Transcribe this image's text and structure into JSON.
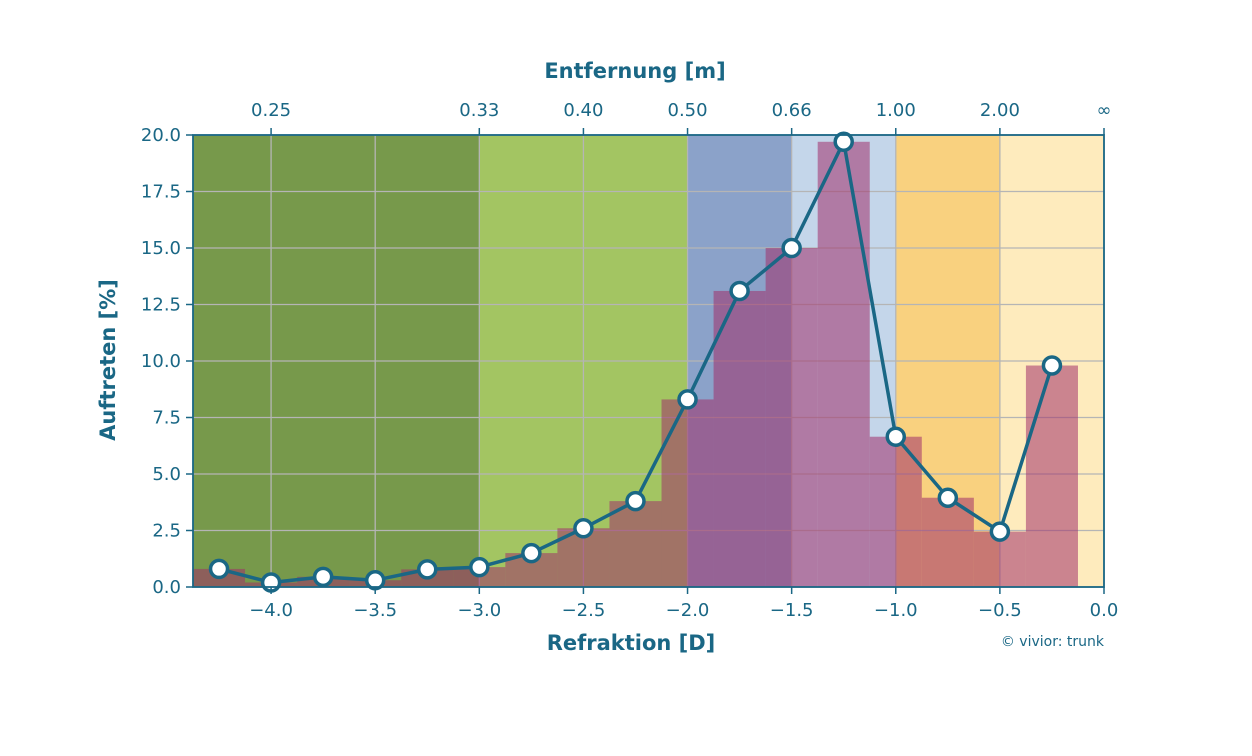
{
  "chart_data": {
    "type": "bar",
    "title": "",
    "xlabel": "Refraktion [D]",
    "ylabel": "Auftreten [%]",
    "top_axis_label": "Entfernung [m]",
    "credit": "© vivior: trunk",
    "xlim": [
      -4.375,
      0.0
    ],
    "ylim": [
      0,
      20
    ],
    "grid": true,
    "x_ticks": [
      {
        "value": -4.0,
        "label": "−4.0"
      },
      {
        "value": -3.5,
        "label": "−3.5"
      },
      {
        "value": -3.0,
        "label": "−3.0"
      },
      {
        "value": -2.5,
        "label": "−2.5"
      },
      {
        "value": -2.0,
        "label": "−2.0"
      },
      {
        "value": -1.5,
        "label": "−1.5"
      },
      {
        "value": -1.0,
        "label": "−1.0"
      },
      {
        "value": -0.5,
        "label": "−0.5"
      },
      {
        "value": 0.0,
        "label": "0.0"
      }
    ],
    "y_ticks": [
      {
        "value": 0,
        "label": "0.0"
      },
      {
        "value": 2.5,
        "label": "2.5"
      },
      {
        "value": 5,
        "label": "5.0"
      },
      {
        "value": 7.5,
        "label": "7.5"
      },
      {
        "value": 10,
        "label": "10.0"
      },
      {
        "value": 12.5,
        "label": "12.5"
      },
      {
        "value": 15,
        "label": "15.0"
      },
      {
        "value": 17.5,
        "label": "17.5"
      },
      {
        "value": 20,
        "label": "20.0"
      }
    ],
    "top_ticks": [
      {
        "value": -4.0,
        "label": "0.25"
      },
      {
        "value": -3.0,
        "label": "0.33"
      },
      {
        "value": -2.5,
        "label": "0.40"
      },
      {
        "value": -2.0,
        "label": "0.50"
      },
      {
        "value": -1.5,
        "label": "0.66"
      },
      {
        "value": -1.0,
        "label": "1.00"
      },
      {
        "value": -0.5,
        "label": "2.00"
      },
      {
        "value": 0.0,
        "label": "∞"
      }
    ],
    "zones": [
      {
        "x0": -4.375,
        "x1": -3.0,
        "color": "#77994b"
      },
      {
        "x0": -3.0,
        "x1": -2.0,
        "color": "#a3c562"
      },
      {
        "x0": -2.0,
        "x1": -1.5,
        "color": "#8ba2c9"
      },
      {
        "x0": -1.5,
        "x1": -1.0,
        "color": "#c4d6ea"
      },
      {
        "x0": -1.0,
        "x1": -0.5,
        "color": "#f9d17f"
      },
      {
        "x0": -0.5,
        "x1": 0.0,
        "color": "#feebbd"
      }
    ],
    "bin_width": 0.25,
    "x": [
      -4.25,
      -4.0,
      -3.75,
      -3.5,
      -3.25,
      -3.0,
      -2.75,
      -2.5,
      -2.25,
      -2.0,
      -1.75,
      -1.5,
      -1.25,
      -1.0,
      -0.75,
      -0.5,
      -0.25
    ],
    "series": [
      {
        "name": "Auftreten",
        "values": [
          0.8,
          0.2,
          0.45,
          0.3,
          0.78,
          0.88,
          1.5,
          2.6,
          3.8,
          8.3,
          13.1,
          15.0,
          19.7,
          6.65,
          3.95,
          2.45,
          9.8
        ],
        "bar_color": "#a0306a",
        "bar_opacity": 0.55,
        "line_color": "#1a6785",
        "marker_color": "#ffffff"
      }
    ]
  }
}
